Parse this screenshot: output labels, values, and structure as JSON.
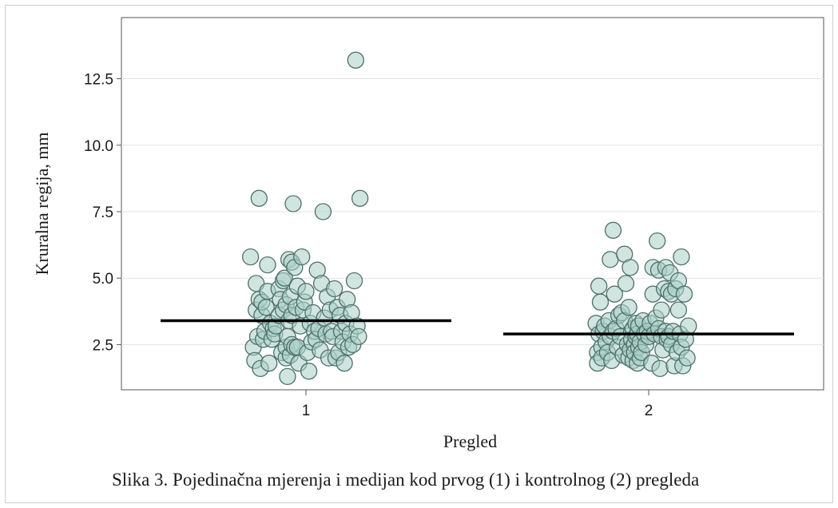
{
  "caption": "Slika 3. Pojedinačna mjerenja i medijan kod prvog (1) i kontrolnog (2) pregleda",
  "chart_data": {
    "type": "scatter",
    "subtype": "jitter-strip-with-median",
    "xlabel": "Pregled",
    "ylabel": "Kruralna regija, mm",
    "categories": [
      "1",
      "2"
    ],
    "yticks": [
      "2.5",
      "5.0",
      "7.5",
      "10.0",
      "12.5"
    ],
    "ylim": [
      0.8,
      14.8
    ],
    "grid": "horizontal",
    "point_color": "#a9cfc6",
    "point_stroke": "#4f6f69",
    "median_color": "#000000",
    "medians": [
      3.4,
      2.9
    ],
    "groups": [
      {
        "category": "1",
        "points": [
          [
            -0.2,
            5.8
          ],
          [
            -0.18,
            2.4
          ],
          [
            -0.17,
            1.9
          ],
          [
            -0.16,
            3.8
          ],
          [
            -0.16,
            4.8
          ],
          [
            -0.15,
            2.8
          ],
          [
            -0.14,
            4.2
          ],
          [
            -0.14,
            8.0
          ],
          [
            -0.13,
            1.6
          ],
          [
            -0.12,
            3.6
          ],
          [
            -0.12,
            4.1
          ],
          [
            -0.11,
            2.7
          ],
          [
            -0.1,
            3.0
          ],
          [
            -0.09,
            3.9
          ],
          [
            -0.08,
            5.5
          ],
          [
            -0.08,
            4.5
          ],
          [
            -0.07,
            1.8
          ],
          [
            -0.06,
            3.3
          ],
          [
            -0.05,
            2.7
          ],
          [
            -0.04,
            3.1
          ],
          [
            -0.03,
            2.9
          ],
          [
            -0.02,
            3.2
          ],
          [
            0.0,
            4.6
          ],
          [
            0.0,
            3.6
          ],
          [
            0.01,
            4.2
          ],
          [
            0.02,
            2.2
          ],
          [
            0.03,
            3.8
          ],
          [
            0.03,
            4.9
          ],
          [
            0.04,
            5.0
          ],
          [
            0.05,
            2.0
          ],
          [
            0.05,
            2.4
          ],
          [
            0.05,
            4.0
          ],
          [
            0.06,
            2.8
          ],
          [
            0.06,
            1.3
          ],
          [
            0.07,
            5.7
          ],
          [
            0.07,
            3.4
          ],
          [
            0.08,
            2.1
          ],
          [
            0.08,
            4.3
          ],
          [
            0.09,
            3.6
          ],
          [
            0.09,
            5.6
          ],
          [
            0.09,
            2.5
          ],
          [
            0.1,
            7.8
          ],
          [
            0.11,
            2.4
          ],
          [
            0.11,
            5.4
          ],
          [
            0.12,
            3.9
          ],
          [
            0.13,
            2.4
          ],
          [
            0.13,
            4.7
          ],
          [
            0.14,
            1.8
          ],
          [
            0.15,
            3.2
          ],
          [
            0.16,
            5.8
          ],
          [
            0.17,
            3.8
          ],
          [
            0.18,
            4.1
          ],
          [
            0.19,
            4.5
          ],
          [
            0.2,
            2.2
          ],
          [
            0.21,
            1.5
          ],
          [
            0.22,
            3.3
          ],
          [
            0.23,
            2.6
          ],
          [
            0.24,
            3.7
          ],
          [
            0.25,
            3.0
          ],
          [
            0.26,
            2.7
          ],
          [
            0.27,
            5.3
          ],
          [
            0.28,
            3.1
          ],
          [
            0.29,
            2.3
          ],
          [
            0.3,
            4.8
          ],
          [
            0.31,
            7.5
          ],
          [
            0.32,
            3.5
          ],
          [
            0.33,
            2.9
          ],
          [
            0.34,
            4.3
          ],
          [
            0.35,
            2.0
          ],
          [
            0.36,
            3.8
          ],
          [
            0.37,
            3.0
          ],
          [
            0.38,
            2.8
          ],
          [
            0.39,
            4.6
          ],
          [
            0.4,
            2.0
          ],
          [
            0.41,
            3.9
          ],
          [
            0.42,
            2.2
          ],
          [
            0.43,
            3.6
          ],
          [
            0.44,
            3.0
          ],
          [
            0.45,
            2.6
          ],
          [
            0.46,
            1.8
          ],
          [
            0.47,
            3.3
          ],
          [
            0.48,
            4.2
          ],
          [
            0.49,
            2.4
          ],
          [
            0.5,
            2.9
          ],
          [
            0.51,
            3.7
          ],
          [
            0.52,
            2.5
          ],
          [
            0.53,
            4.9
          ],
          [
            0.54,
            13.2
          ],
          [
            0.55,
            3.2
          ],
          [
            0.56,
            2.8
          ],
          [
            0.57,
            8.0
          ]
        ]
      },
      {
        "category": "2",
        "points": [
          [
            -0.18,
            3.3
          ],
          [
            -0.17,
            2.2
          ],
          [
            -0.17,
            1.8
          ],
          [
            -0.16,
            4.7
          ],
          [
            -0.16,
            2.9
          ],
          [
            -0.15,
            4.1
          ],
          [
            -0.14,
            2.4
          ],
          [
            -0.14,
            2.0
          ],
          [
            -0.13,
            3.0
          ],
          [
            -0.12,
            3.2
          ],
          [
            -0.11,
            2.6
          ],
          [
            -0.1,
            2.2
          ],
          [
            -0.09,
            3.4
          ],
          [
            -0.08,
            5.7
          ],
          [
            -0.08,
            2.8
          ],
          [
            -0.07,
            1.9
          ],
          [
            -0.06,
            3.0
          ],
          [
            -0.06,
            6.8
          ],
          [
            -0.05,
            4.4
          ],
          [
            -0.04,
            3.1
          ],
          [
            -0.03,
            2.4
          ],
          [
            -0.02,
            3.6
          ],
          [
            -0.01,
            2.8
          ],
          [
            0.0,
            3.7
          ],
          [
            0.01,
            2.1
          ],
          [
            0.02,
            5.9
          ],
          [
            0.02,
            3.4
          ],
          [
            0.03,
            4.8
          ],
          [
            0.04,
            2.5
          ],
          [
            0.05,
            3.9
          ],
          [
            0.05,
            2.0
          ],
          [
            0.06,
            5.4
          ],
          [
            0.06,
            2.3
          ],
          [
            0.07,
            3.0
          ],
          [
            0.07,
            2.7
          ],
          [
            0.08,
            1.9
          ],
          [
            0.08,
            3.1
          ],
          [
            0.09,
            2.5
          ],
          [
            0.09,
            2.2
          ],
          [
            0.1,
            2.8
          ],
          [
            0.1,
            3.3
          ],
          [
            0.11,
            1.8
          ],
          [
            0.11,
            2.9
          ],
          [
            0.12,
            2.4
          ],
          [
            0.12,
            3.2
          ],
          [
            0.13,
            2.0
          ],
          [
            0.13,
            2.6
          ],
          [
            0.14,
            2.2
          ],
          [
            0.15,
            3.4
          ],
          [
            0.16,
            2.9
          ],
          [
            0.17,
            2.5
          ],
          [
            0.18,
            3.0
          ],
          [
            0.19,
            2.8
          ],
          [
            0.2,
            3.3
          ],
          [
            0.21,
            1.8
          ],
          [
            0.22,
            4.4
          ],
          [
            0.22,
            5.4
          ],
          [
            0.23,
            2.9
          ],
          [
            0.24,
            3.5
          ],
          [
            0.25,
            6.4
          ],
          [
            0.26,
            3.1
          ],
          [
            0.26,
            5.3
          ],
          [
            0.27,
            1.6
          ],
          [
            0.28,
            2.8
          ],
          [
            0.28,
            3.8
          ],
          [
            0.29,
            2.3
          ],
          [
            0.3,
            4.6
          ],
          [
            0.31,
            5.4
          ],
          [
            0.31,
            3.0
          ],
          [
            0.32,
            2.7
          ],
          [
            0.33,
            4.5
          ],
          [
            0.33,
            2.8
          ],
          [
            0.34,
            5.2
          ],
          [
            0.35,
            2.5
          ],
          [
            0.35,
            4.4
          ],
          [
            0.36,
            3.0
          ],
          [
            0.37,
            1.7
          ],
          [
            0.38,
            4.6
          ],
          [
            0.39,
            2.2
          ],
          [
            0.4,
            4.9
          ],
          [
            0.4,
            3.8
          ],
          [
            0.41,
            2.9
          ],
          [
            0.42,
            5.8
          ],
          [
            0.42,
            2.4
          ],
          [
            0.43,
            1.7
          ],
          [
            0.44,
            4.4
          ],
          [
            0.45,
            2.7
          ],
          [
            0.46,
            2.0
          ],
          [
            0.47,
            3.2
          ]
        ]
      }
    ]
  }
}
